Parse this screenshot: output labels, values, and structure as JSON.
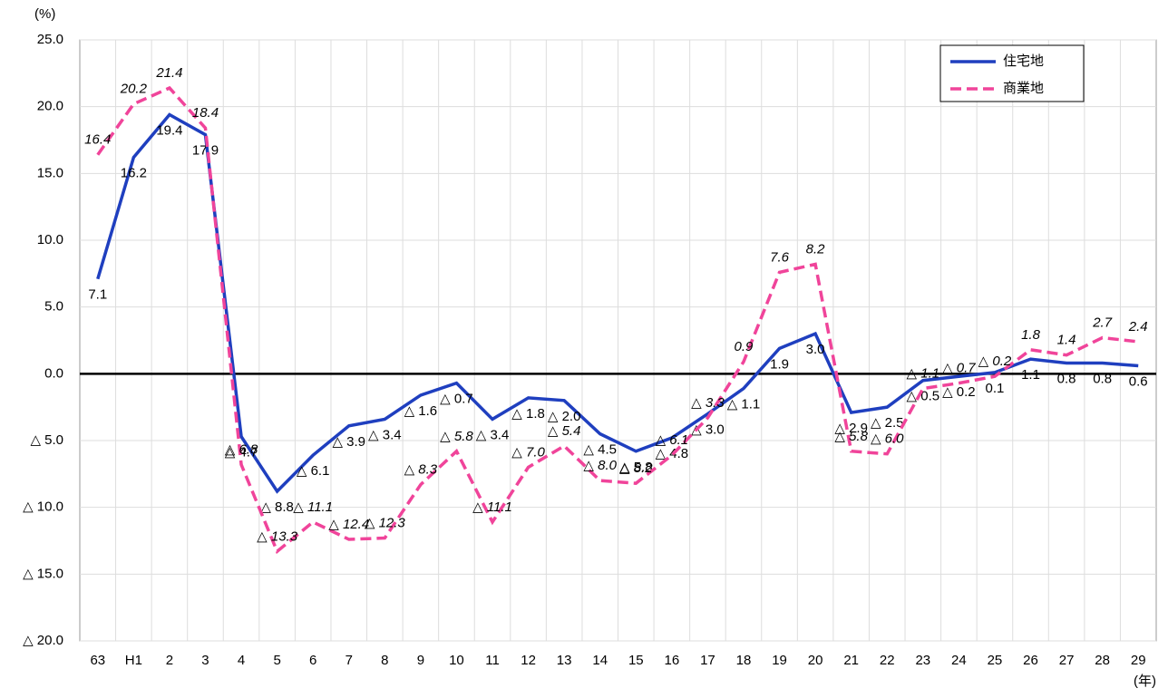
{
  "chart_data": {
    "type": "line",
    "y_unit_label": "(%)",
    "x_unit_label": "(年)",
    "categories": [
      "63",
      "H1",
      "2",
      "3",
      "4",
      "5",
      "6",
      "7",
      "8",
      "9",
      "10",
      "11",
      "12",
      "13",
      "14",
      "15",
      "16",
      "17",
      "18",
      "19",
      "20",
      "21",
      "22",
      "23",
      "24",
      "25",
      "26",
      "27",
      "28",
      "29"
    ],
    "series": [
      {
        "name": "住宅地",
        "color": "#1f3fbf",
        "dash": false,
        "values": [
          7.1,
          16.2,
          19.4,
          17.9,
          -4.7,
          -8.8,
          -6.1,
          -3.9,
          -3.4,
          -1.6,
          -0.7,
          -3.4,
          -1.8,
          -2.0,
          -4.5,
          -5.8,
          -4.8,
          -3.0,
          -1.1,
          1.9,
          3.0,
          -2.9,
          -2.5,
          -0.5,
          -0.2,
          0.1,
          1.1,
          0.8,
          0.8,
          0.6
        ],
        "value_labels": [
          "7.1",
          "16.2",
          "19.4",
          "17.9",
          "△ 4.7",
          "△ 8.8",
          "△ 6.1",
          "△ 3.9",
          "△ 3.4",
          "△ 1.6",
          "△ 0.7",
          "△ 3.4",
          "△ 1.8",
          "△ 2.0",
          "△ 4.5",
          "△ 5.8",
          "△ 4.8",
          "△ 3.0",
          "△ 1.1",
          "1.9",
          "3.0",
          "△ 2.9",
          "△ 2.5",
          "△ 0.5",
          "△ 0.2",
          "0.1",
          "1.1",
          "0.8",
          "0.8",
          "0.6"
        ]
      },
      {
        "name": "商業地",
        "color": "#f0449a",
        "dash": true,
        "values": [
          16.4,
          20.2,
          21.4,
          18.4,
          -6.8,
          -13.3,
          -11.1,
          -12.4,
          -12.3,
          -8.3,
          -5.8,
          -11.1,
          -7.0,
          -5.4,
          -8.0,
          -8.2,
          -6.1,
          -3.3,
          0.9,
          7.6,
          8.2,
          -5.8,
          -6.0,
          -1.1,
          -0.7,
          -0.2,
          1.8,
          1.4,
          2.7,
          2.4
        ],
        "value_labels": [
          "16.4",
          "20.2",
          "21.4",
          "18.4",
          "△ 6.8",
          "△ 13.3",
          "△ 11.1",
          "△ 12.4",
          "△ 12.3",
          "△ 8.3",
          "△ 5.8",
          "△ 11.1",
          "△ 7.0",
          "△ 5.4",
          "△ 8.0",
          "△ 8.2",
          "△ 6.1",
          "△ 3.3",
          "0.9",
          "7.6",
          "8.2",
          "△ 5.8",
          "△ 6.0",
          "△ 1.1",
          "△ 0.7",
          "△ 0.2",
          "1.8",
          "1.4",
          "2.7",
          "2.4"
        ]
      }
    ],
    "ylim": [
      -20,
      25
    ],
    "yticks": [
      {
        "value": 25,
        "label": "25.0"
      },
      {
        "value": 20,
        "label": "20.0"
      },
      {
        "value": 15,
        "label": "15.0"
      },
      {
        "value": 10,
        "label": "10.0"
      },
      {
        "value": 5,
        "label": "5.0"
      },
      {
        "value": 0,
        "label": "0.0"
      },
      {
        "value": -5,
        "label": "△ 5.0"
      },
      {
        "value": -10,
        "label": "△ 10.0"
      },
      {
        "value": -15,
        "label": "△ 15.0"
      },
      {
        "value": -20,
        "label": "△ 20.0"
      }
    ],
    "grid": true,
    "legend": "upper right"
  }
}
